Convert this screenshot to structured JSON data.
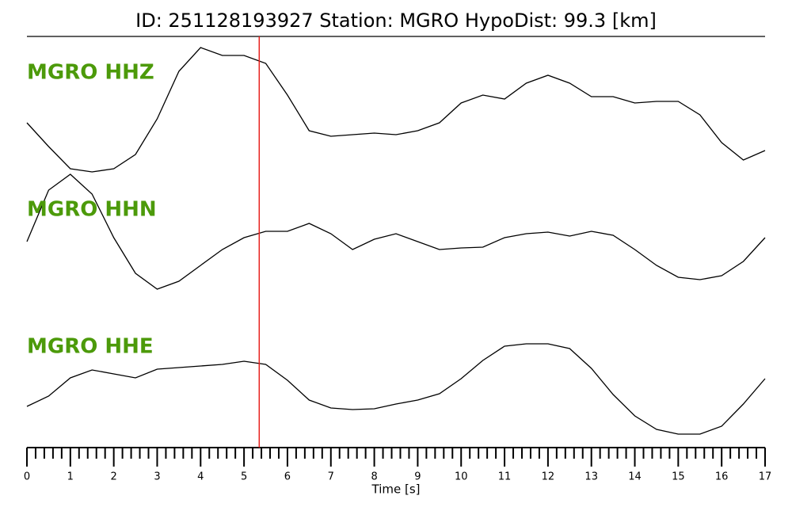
{
  "chart_data": {
    "type": "line",
    "title": "ID: 251128193927   Station: MGRO   HypoDist:    99.3 [km]",
    "xlabel": "Time [s]",
    "x": [
      0,
      0.5,
      1,
      1.5,
      2,
      2.5,
      3,
      3.5,
      4,
      4.5,
      5,
      5.5,
      6,
      6.5,
      7,
      7.5,
      8,
      8.5,
      9,
      9.5,
      10,
      10.5,
      11,
      11.5,
      12,
      12.5,
      13,
      13.5,
      14,
      14.5,
      15,
      15.5,
      16,
      16.5,
      17
    ],
    "series": [
      {
        "name": "MGRO HHZ",
        "color": "#000000",
        "label_color": "#4c9a0a",
        "values": [
          410,
          380,
          352,
          348,
          352,
          370,
          415,
          475,
          505,
          495,
          495,
          485,
          445,
          400,
          393,
          395,
          397,
          395,
          400,
          410,
          435,
          445,
          440,
          460,
          470,
          460,
          443,
          443,
          435,
          437,
          437,
          420,
          385,
          363,
          375
        ]
      },
      {
        "name": "MGRO HHN",
        "color": "#000000",
        "label_color": "#4c9a0a",
        "values": [
          260,
          325,
          345,
          320,
          265,
          220,
          200,
          210,
          230,
          250,
          265,
          273,
          273,
          283,
          270,
          250,
          263,
          270,
          260,
          250,
          252,
          253,
          265,
          270,
          272,
          267,
          273,
          268,
          250,
          230,
          215,
          212,
          217,
          235,
          265
        ]
      },
      {
        "name": "MGRO HHE",
        "color": "#000000",
        "label_color": "#4c9a0a",
        "values": [
          52,
          65,
          88,
          98,
          93,
          88,
          99,
          101,
          103,
          105,
          109,
          105,
          85,
          60,
          50,
          48,
          49,
          55,
          60,
          68,
          87,
          110,
          128,
          131,
          131,
          125,
          100,
          67,
          40,
          23,
          17,
          17,
          27,
          55,
          87
        ]
      }
    ],
    "xlim": [
      0,
      17
    ],
    "xticks": [
      0,
      1,
      2,
      3,
      4,
      5,
      6,
      7,
      8,
      9,
      10,
      11,
      12,
      13,
      14,
      15,
      16,
      17
    ],
    "xminorticks": [
      0.2,
      0.4,
      0.6,
      0.8,
      1.2,
      1.4,
      1.6,
      1.8,
      2.2,
      2.4,
      2.6,
      2.8,
      3.2,
      3.4,
      3.6,
      3.8,
      4.2,
      4.4,
      4.6,
      4.8,
      5.2,
      5.4,
      5.6,
      5.8,
      6.2,
      6.4,
      6.6,
      6.8,
      7.2,
      7.4,
      7.6,
      7.8,
      8.2,
      8.4,
      8.6,
      8.8,
      9.2,
      9.4,
      9.6,
      9.8,
      10.2,
      10.4,
      10.6,
      10.8,
      11.2,
      11.4,
      11.6,
      11.8,
      12.2,
      12.4,
      12.6,
      12.8,
      13.2,
      13.4,
      13.6,
      13.8,
      14.2,
      14.4,
      14.6,
      14.8,
      15.2,
      15.4,
      15.6,
      15.8,
      16.2,
      16.4,
      16.6,
      16.8
    ],
    "ylim": [
      0,
      520
    ],
    "vline": {
      "x": 5.35,
      "color": "#e8201c"
    }
  }
}
